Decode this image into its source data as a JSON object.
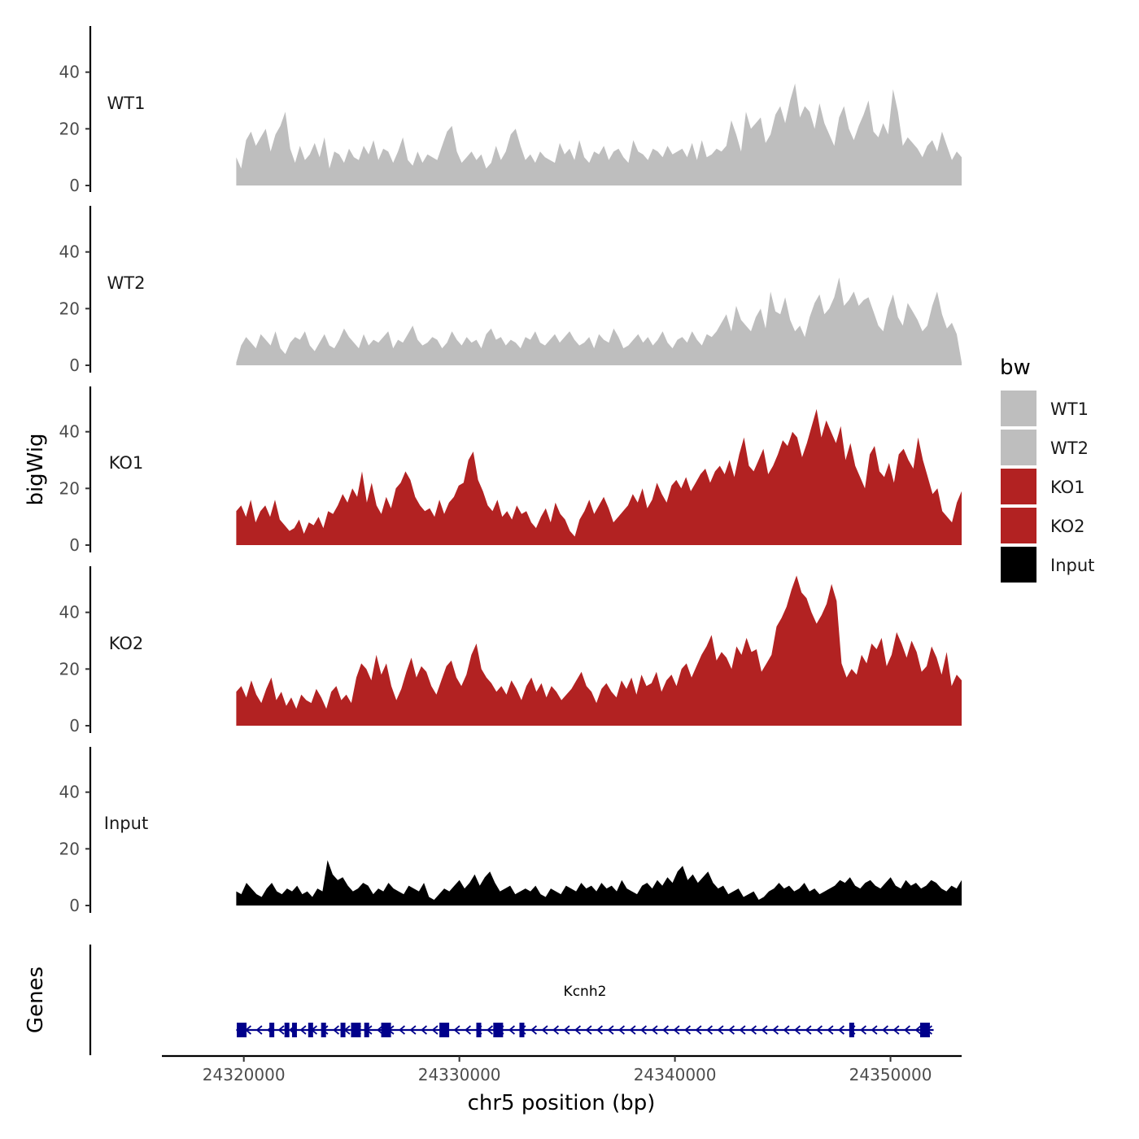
{
  "chart_data": {
    "type": "area",
    "ylabel": "bigWig",
    "xlabel": "chr5 position (bp)",
    "xlim": [
      24316200,
      24353300
    ],
    "ylim": [
      0,
      56
    ],
    "yticks": [
      0,
      20,
      40
    ],
    "xticks": [
      24320000,
      24330000,
      24340000,
      24350000
    ],
    "x_range": [
      24319650,
      24353300
    ],
    "legend": {
      "title": "bw",
      "position": "right",
      "entries": [
        {
          "label": "WT1",
          "color": "#bebebe"
        },
        {
          "label": "WT2",
          "color": "#bebebe"
        },
        {
          "label": "KO1",
          "color": "#b22222"
        },
        {
          "label": "KO2",
          "color": "#b22222"
        },
        {
          "label": "Input",
          "color": "#000000"
        }
      ]
    },
    "series": [
      {
        "name": "WT1",
        "color": "#bebebe",
        "values": [
          10,
          6,
          16,
          19,
          14,
          17,
          20,
          12,
          18,
          21,
          26,
          13,
          8,
          14,
          9,
          11,
          15,
          10,
          17,
          6,
          12,
          11,
          8,
          13,
          10,
          9,
          14,
          11,
          16,
          9,
          13,
          12,
          8,
          12,
          17,
          9,
          7,
          12,
          8,
          11,
          10,
          9,
          14,
          19,
          21,
          12,
          8,
          10,
          12,
          9,
          11,
          6,
          8,
          14,
          9,
          12,
          18,
          20,
          14,
          9,
          11,
          8,
          12,
          10,
          9,
          8,
          15,
          11,
          13,
          9,
          16,
          10,
          8,
          12,
          11,
          14,
          9,
          12,
          13,
          10,
          8,
          16,
          12,
          11,
          9,
          13,
          12,
          10,
          14,
          11,
          12,
          13,
          10,
          15,
          9,
          16,
          10,
          11,
          13,
          12,
          14,
          23,
          18,
          12,
          26,
          20,
          22,
          24,
          15,
          18,
          25,
          28,
          22,
          30,
          36,
          24,
          28,
          26,
          20,
          29,
          22,
          18,
          14,
          24,
          28,
          20,
          16,
          21,
          25,
          30,
          19,
          17,
          22,
          18,
          34,
          26,
          14,
          17,
          15,
          13,
          10,
          14,
          16,
          12,
          19,
          14,
          9,
          12,
          10
        ]
      },
      {
        "name": "WT2",
        "color": "#bebebe",
        "values": [
          1,
          7,
          10,
          8,
          6,
          11,
          9,
          7,
          12,
          6,
          4,
          8,
          10,
          9,
          12,
          7,
          5,
          8,
          11,
          7,
          6,
          9,
          13,
          10,
          8,
          6,
          11,
          7,
          9,
          8,
          10,
          12,
          6,
          9,
          8,
          11,
          14,
          9,
          7,
          8,
          10,
          9,
          6,
          8,
          12,
          9,
          7,
          10,
          8,
          9,
          6,
          11,
          13,
          9,
          10,
          7,
          9,
          8,
          6,
          10,
          9,
          12,
          8,
          7,
          9,
          11,
          8,
          10,
          12,
          9,
          7,
          8,
          10,
          6,
          11,
          9,
          8,
          13,
          10,
          6,
          7,
          9,
          11,
          8,
          10,
          7,
          9,
          12,
          8,
          6,
          9,
          10,
          8,
          12,
          9,
          7,
          11,
          10,
          12,
          15,
          18,
          12,
          21,
          16,
          14,
          12,
          17,
          20,
          13,
          26,
          19,
          18,
          24,
          16,
          12,
          14,
          10,
          17,
          22,
          25,
          18,
          20,
          24,
          31,
          21,
          23,
          26,
          21,
          23,
          24,
          19,
          14,
          12,
          20,
          25,
          17,
          14,
          22,
          19,
          16,
          12,
          14,
          21,
          26,
          18,
          13,
          15,
          11,
          1
        ]
      },
      {
        "name": "KO1",
        "color": "#b22222",
        "values": [
          12,
          14,
          10,
          16,
          8,
          12,
          14,
          10,
          16,
          9,
          7,
          5,
          6,
          9,
          4,
          8,
          7,
          10,
          6,
          12,
          11,
          14,
          18,
          15,
          20,
          17,
          26,
          15,
          22,
          14,
          11,
          17,
          13,
          20,
          22,
          26,
          23,
          17,
          14,
          12,
          13,
          10,
          16,
          11,
          15,
          17,
          21,
          22,
          30,
          33,
          23,
          19,
          14,
          12,
          16,
          10,
          12,
          9,
          14,
          11,
          12,
          8,
          6,
          10,
          13,
          8,
          15,
          11,
          9,
          5,
          3,
          9,
          12,
          16,
          11,
          14,
          17,
          13,
          8,
          10,
          12,
          14,
          18,
          15,
          20,
          13,
          16,
          22,
          18,
          15,
          21,
          23,
          20,
          24,
          19,
          22,
          25,
          27,
          22,
          26,
          28,
          25,
          30,
          24,
          32,
          38,
          28,
          26,
          30,
          34,
          25,
          28,
          32,
          37,
          35,
          40,
          38,
          31,
          36,
          42,
          48,
          38,
          44,
          40,
          36,
          42,
          30,
          36,
          28,
          24,
          20,
          32,
          35,
          26,
          24,
          29,
          22,
          32,
          34,
          30,
          27,
          38,
          30,
          24,
          18,
          20,
          12,
          10,
          8,
          15,
          19
        ]
      },
      {
        "name": "KO2",
        "color": "#b22222",
        "values": [
          12,
          14,
          10,
          16,
          11,
          8,
          13,
          17,
          9,
          12,
          7,
          10,
          6,
          11,
          9,
          8,
          13,
          10,
          6,
          12,
          14,
          9,
          11,
          8,
          17,
          22,
          20,
          16,
          25,
          18,
          22,
          14,
          9,
          13,
          19,
          24,
          17,
          21,
          19,
          14,
          11,
          16,
          21,
          23,
          17,
          14,
          18,
          25,
          29,
          20,
          17,
          15,
          12,
          14,
          11,
          16,
          13,
          9,
          14,
          17,
          12,
          15,
          10,
          14,
          12,
          9,
          11,
          13,
          16,
          19,
          14,
          12,
          8,
          13,
          15,
          12,
          10,
          16,
          13,
          17,
          11,
          18,
          14,
          15,
          19,
          12,
          16,
          18,
          14,
          20,
          22,
          17,
          21,
          25,
          28,
          32,
          23,
          26,
          24,
          20,
          28,
          25,
          31,
          26,
          27,
          19,
          22,
          25,
          35,
          38,
          42,
          48,
          53,
          47,
          45,
          40,
          36,
          39,
          43,
          50,
          44,
          22,
          17,
          20,
          18,
          25,
          22,
          29,
          27,
          31,
          21,
          25,
          33,
          29,
          24,
          30,
          26,
          19,
          21,
          28,
          24,
          18,
          26,
          14,
          18,
          16
        ]
      },
      {
        "name": "Input",
        "color": "#000000",
        "values": [
          5,
          4,
          8,
          6,
          4,
          3,
          6,
          8,
          5,
          4,
          6,
          5,
          7,
          4,
          5,
          3,
          6,
          5,
          16,
          11,
          9,
          10,
          7,
          5,
          6,
          8,
          7,
          4,
          6,
          5,
          8,
          6,
          5,
          4,
          7,
          6,
          5,
          8,
          3,
          2,
          4,
          6,
          5,
          7,
          9,
          6,
          8,
          11,
          7,
          10,
          12,
          8,
          5,
          6,
          7,
          4,
          5,
          6,
          5,
          7,
          4,
          3,
          6,
          5,
          4,
          7,
          6,
          5,
          8,
          6,
          7,
          5,
          8,
          6,
          7,
          5,
          9,
          6,
          5,
          4,
          7,
          8,
          6,
          9,
          7,
          10,
          8,
          12,
          14,
          9,
          11,
          8,
          10,
          12,
          8,
          6,
          7,
          4,
          5,
          6,
          3,
          4,
          5,
          2,
          3,
          5,
          6,
          8,
          6,
          7,
          5,
          6,
          8,
          5,
          6,
          4,
          5,
          6,
          7,
          9,
          8,
          10,
          7,
          6,
          8,
          9,
          7,
          6,
          8,
          10,
          7,
          6,
          9,
          7,
          8,
          6,
          7,
          9,
          8,
          6,
          5,
          7,
          6,
          9
        ]
      }
    ],
    "gene_track": {
      "label": "Genes",
      "genes": [
        {
          "name": "Kcnh2",
          "start": 24319650,
          "end": 24352000,
          "strand": "-",
          "exons": [
            24319900,
            24321300,
            24322000,
            24322350,
            24323100,
            24323700,
            24324600,
            24325200,
            24325700,
            24326600,
            24329300,
            24330900,
            24331800,
            24332900,
            24348200,
            24351600
          ]
        }
      ]
    }
  }
}
